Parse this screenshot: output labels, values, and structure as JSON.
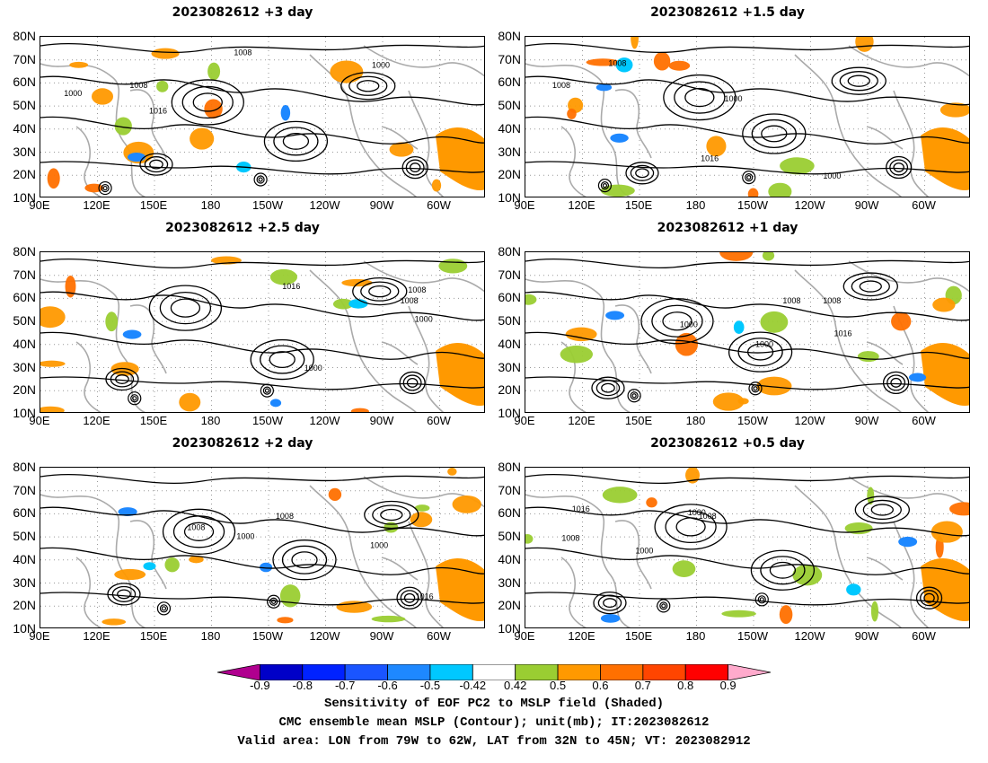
{
  "panels": [
    {
      "title": "2023082612 +3 day"
    },
    {
      "title": "2023082612 +1.5 day"
    },
    {
      "title": "2023082612 +2.5 day"
    },
    {
      "title": "2023082612 +1 day"
    },
    {
      "title": "2023082612 +2 day"
    },
    {
      "title": "2023082612 +0.5 day"
    }
  ],
  "axes": {
    "lat_labels": [
      "80N",
      "70N",
      "60N",
      "50N",
      "40N",
      "30N",
      "20N",
      "10N"
    ],
    "lon_labels": [
      "90E",
      "120E",
      "150E",
      "180",
      "150W",
      "120W",
      "90W",
      "60W"
    ]
  },
  "contour_labels": [
    "1000",
    "1008",
    "1016"
  ],
  "colorbar": {
    "labels": [
      "-0.9",
      "-0.8",
      "-0.7",
      "-0.6",
      "-0.5",
      "-0.42",
      "0.42",
      "0.5",
      "0.6",
      "0.7",
      "0.8",
      "0.9"
    ],
    "colors": [
      "#b0008f",
      "#0000c8",
      "#0022ff",
      "#1a55ff",
      "#1e88ff",
      "#00c8ff",
      "#ffffff",
      "#9acd32",
      "#ff9900",
      "#ff7000",
      "#ff4500",
      "#ff0000",
      "#ffaacc"
    ]
  },
  "caption": {
    "line1": "Sensitivity of EOF PC2 to MSLP field (Shaded)",
    "line2": "CMC ensemble mean MSLP (Contour); unit(mb); IT:2023082612",
    "line3": "Valid area: LON from 79W to 62W, LAT from 32N to 45N; VT: 2023082912"
  }
}
